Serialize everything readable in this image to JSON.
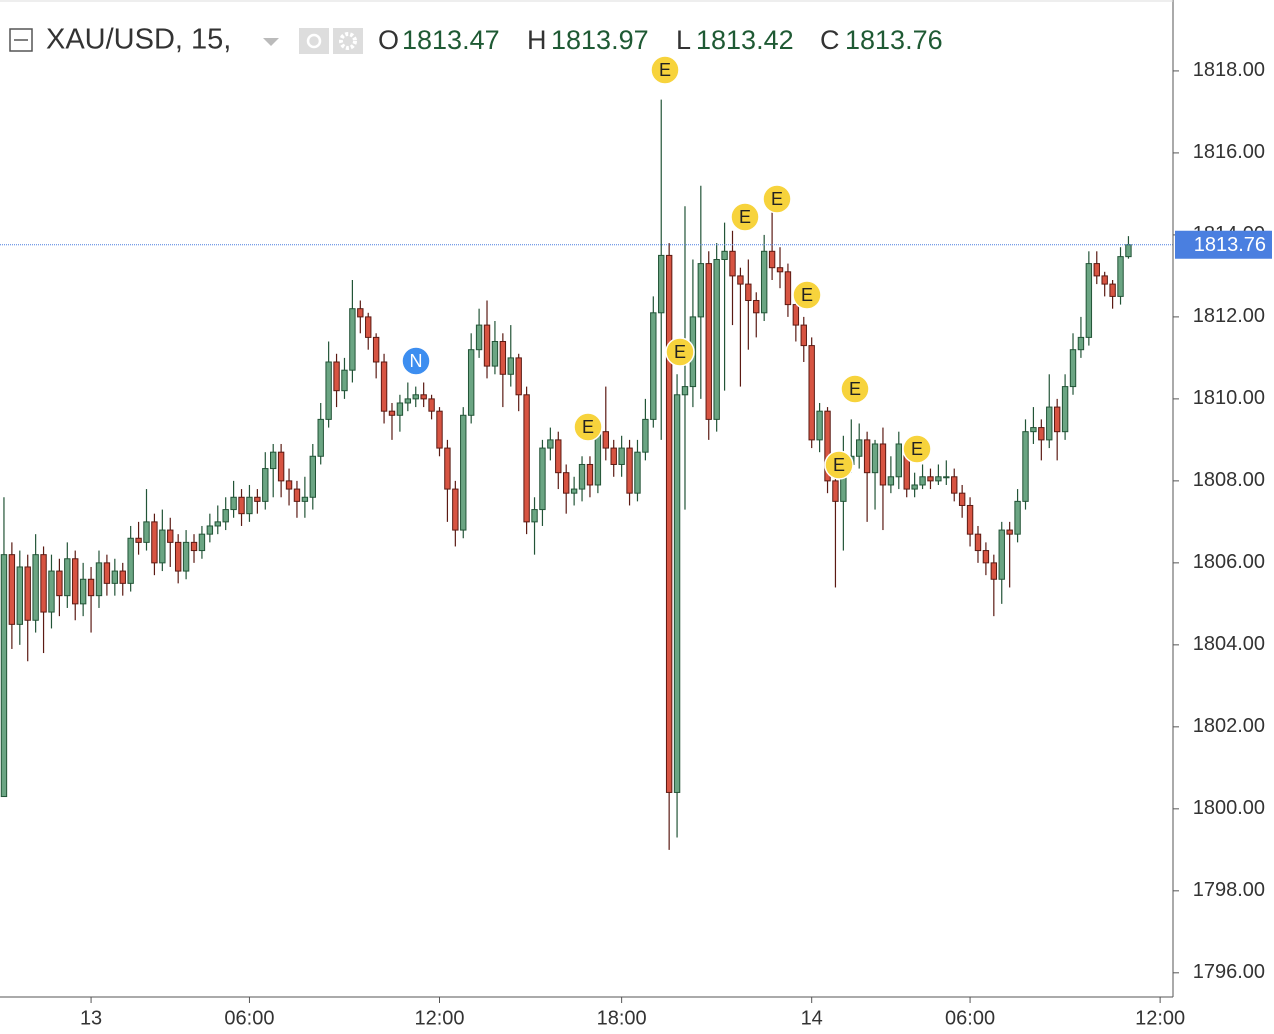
{
  "chart_data": {
    "type": "candlestick",
    "symbol": "XAU/USD, 15,",
    "ohlc_labels": [
      "O",
      "H",
      "L",
      "C"
    ],
    "events": [
      "E",
      "N",
      "E",
      "E",
      "E",
      "E",
      "E",
      "E",
      "E",
      "E"
    ],
    "categories": [
      null,
      null,
      null,
      null,
      null,
      null,
      null,
      null,
      null,
      null,
      null,
      "13",
      null,
      null,
      null,
      null,
      null,
      null,
      null,
      null,
      null,
      null,
      null,
      null,
      null,
      null,
      null,
      null,
      null,
      null,
      null,
      "06:00",
      null,
      null,
      null,
      null,
      null,
      null,
      null,
      null,
      null,
      null,
      null,
      null,
      null,
      null,
      null,
      null,
      null,
      null,
      null,
      null,
      null,
      null,
      null,
      "12:00",
      null,
      null,
      null,
      null,
      null,
      null,
      null,
      null,
      null,
      null,
      null,
      null,
      null,
      null,
      null,
      null,
      null,
      null,
      null,
      null,
      null,
      null,
      "18:00",
      null,
      null,
      null,
      null,
      null,
      null,
      null,
      null,
      null,
      null,
      null,
      null,
      null,
      null,
      null,
      null,
      null,
      null,
      null,
      null,
      null,
      null,
      null,
      "14",
      null,
      null,
      null,
      null,
      null,
      null,
      null,
      null,
      null,
      null,
      null,
      null,
      null,
      null,
      null,
      null,
      null,
      null,
      null,
      "06:00",
      null,
      null,
      null,
      null,
      null,
      null,
      null,
      null,
      null,
      null,
      null,
      null,
      null,
      null,
      null,
      null,
      null,
      null,
      null,
      null,
      null,
      null,
      null,
      "12:00"
    ],
    "open": [
      1800.3,
      1806.2,
      1804.5,
      1805.9,
      1804.6,
      1806.2,
      1804.8,
      1805.8,
      1805.2,
      1806.1,
      1805.0,
      1805.6,
      1805.2,
      1806.0,
      1805.5,
      1805.8,
      1805.5,
      1806.6,
      1806.5,
      1807.0,
      1806.0,
      1806.8,
      1806.5,
      1805.8,
      1806.5,
      1806.3,
      1806.7,
      1806.9,
      1807.0,
      1807.3,
      1807.6,
      1807.2,
      1807.6,
      1807.5,
      1808.3,
      1808.7,
      1808.0,
      1807.8,
      1807.5,
      1807.6,
      1808.6,
      1809.5,
      1810.9,
      1810.2,
      1810.7,
      1812.2,
      1812.0,
      1811.5,
      1810.9,
      1809.7,
      1809.6,
      1809.9,
      1810.0,
      1810.1,
      1810.0,
      1809.7,
      1808.8,
      1807.8,
      1806.8,
      1809.6,
      1811.2,
      1811.8,
      1810.8,
      1811.4,
      1810.6,
      1811.0,
      1810.1,
      1807.0,
      1807.3,
      1808.8,
      1809.0,
      1808.2,
      1807.7,
      1807.8,
      1808.4,
      1807.9,
      1809.2,
      1808.8,
      1808.4,
      1808.8,
      1807.7,
      1808.7,
      1809.5,
      1812.1,
      1813.5,
      1800.4,
      1810.1,
      1810.3,
      1812.0,
      1813.3,
      1809.5,
      1813.4,
      1813.6,
      1813.0,
      1812.8,
      1812.4,
      1812.1,
      1813.6,
      1813.2,
      1813.1,
      1812.3,
      1811.8,
      1811.3,
      1809.0,
      1809.7,
      1808.0,
      1807.5,
      1808.4,
      1808.6,
      1809.0,
      1808.2,
      1808.9,
      1807.9,
      1808.1,
      1808.9,
      1807.8,
      1807.9,
      1808.1,
      1808.0,
      1808.1,
      1808.1,
      1807.7,
      1807.4,
      1806.7,
      1806.3,
      1806.0,
      1805.6,
      1806.8,
      1806.7,
      1807.5,
      1809.2,
      1809.3,
      1809.0,
      1809.8,
      1809.2,
      1810.3,
      1811.2,
      1811.5,
      1813.3,
      1813.0,
      1812.8,
      1812.5,
      1813.47,
      null,
      null,
      null,
      null
    ],
    "high": [
      1807.6,
      1806.5,
      1806.3,
      1806.2,
      1806.7,
      1806.4,
      1806.2,
      1806.1,
      1806.5,
      1806.3,
      1806.0,
      1805.9,
      1806.3,
      1806.2,
      1806.1,
      1806.0,
      1806.9,
      1807.0,
      1807.8,
      1807.2,
      1807.3,
      1807.1,
      1806.7,
      1806.8,
      1806.7,
      1806.9,
      1807.2,
      1807.4,
      1807.6,
      1808.0,
      1807.8,
      1807.9,
      1807.8,
      1808.7,
      1808.9,
      1808.9,
      1808.3,
      1808.0,
      1808.1,
      1808.9,
      1809.9,
      1811.4,
      1811.1,
      1811.0,
      1812.9,
      1812.4,
      1812.1,
      1811.6,
      1811.1,
      1809.9,
      1810.1,
      1810.4,
      1810.3,
      1810.4,
      1810.1,
      1809.8,
      1809.0,
      1808.0,
      1809.8,
      1811.6,
      1812.2,
      1812.4,
      1811.9,
      1811.6,
      1811.8,
      1811.1,
      1810.3,
      1807.6,
      1809.0,
      1809.3,
      1809.2,
      1808.4,
      1808.1,
      1808.6,
      1808.6,
      1809.5,
      1810.3,
      1809.0,
      1809.1,
      1809.0,
      1809.0,
      1810.0,
      1812.5,
      1817.3,
      1813.8,
      1810.6,
      1814.7,
      1813.4,
      1815.2,
      1813.6,
      1813.8,
      1814.3,
      1814.1,
      1813.2,
      1813.4,
      1812.6,
      1814.0,
      1814.6,
      1813.7,
      1813.3,
      1812.6,
      1812.0,
      1811.5,
      1809.9,
      1809.8,
      1808.4,
      1809.1,
      1809.5,
      1809.4,
      1809.2,
      1809.0,
      1809.3,
      1808.6,
      1809.2,
      1809.0,
      1808.2,
      1808.4,
      1808.3,
      1808.4,
      1808.5,
      1808.3,
      1807.9,
      1807.6,
      1806.9,
      1806.5,
      1806.2,
      1807.0,
      1807.0,
      1807.8,
      1809.5,
      1809.8,
      1809.5,
      1810.6,
      1810.0,
      1810.6,
      1811.6,
      1812.0,
      1813.6,
      1813.6,
      1813.1,
      1812.9,
      1813.7,
      1813.97,
      null,
      null,
      null,
      null
    ],
    "low": [
      1800.3,
      1803.9,
      1804.0,
      1803.6,
      1804.3,
      1803.8,
      1804.4,
      1804.7,
      1804.9,
      1804.6,
      1804.7,
      1804.3,
      1804.9,
      1805.2,
      1805.2,
      1805.2,
      1805.3,
      1806.2,
      1806.3,
      1805.7,
      1805.8,
      1805.9,
      1805.5,
      1805.6,
      1806.0,
      1806.1,
      1806.5,
      1806.7,
      1806.8,
      1807.1,
      1806.9,
      1807.0,
      1807.2,
      1807.3,
      1807.6,
      1807.6,
      1807.4,
      1807.1,
      1807.1,
      1807.3,
      1808.4,
      1809.3,
      1809.8,
      1810.0,
      1810.4,
      1811.6,
      1811.2,
      1810.5,
      1809.4,
      1809.0,
      1809.2,
      1809.7,
      1809.8,
      1809.8,
      1809.5,
      1808.6,
      1807.0,
      1806.4,
      1806.6,
      1809.4,
      1811.0,
      1810.5,
      1810.6,
      1809.8,
      1810.3,
      1809.7,
      1806.7,
      1806.2,
      1806.9,
      1808.5,
      1807.8,
      1807.2,
      1807.4,
      1807.5,
      1807.6,
      1807.7,
      1808.5,
      1808.1,
      1808.1,
      1807.4,
      1807.5,
      1808.5,
      1809.3,
      1809.0,
      1799.0,
      1799.3,
      1807.3,
      1809.8,
      1810.0,
      1809.0,
      1809.2,
      1810.2,
      1811.8,
      1810.3,
      1811.2,
      1811.5,
      1811.9,
      1812.9,
      1812.7,
      1812.0,
      1811.4,
      1810.9,
      1808.8,
      1808.7,
      1807.7,
      1805.4,
      1806.3,
      1808.2,
      1808.3,
      1807.0,
      1807.3,
      1806.8,
      1807.7,
      1807.8,
      1807.6,
      1807.6,
      1807.8,
      1807.8,
      1807.9,
      1807.9,
      1807.5,
      1807.1,
      1806.4,
      1806.0,
      1805.7,
      1804.7,
      1805.0,
      1805.4,
      1806.5,
      1807.3,
      1808.9,
      1808.5,
      1808.8,
      1808.5,
      1809.0,
      1810.1,
      1811.0,
      1811.3,
      1812.8,
      1812.5,
      1812.2,
      1812.3,
      1813.42,
      null,
      null,
      null,
      null
    ],
    "close": [
      1806.2,
      1804.5,
      1805.9,
      1804.6,
      1806.2,
      1804.8,
      1805.8,
      1805.2,
      1806.1,
      1805.0,
      1805.6,
      1805.2,
      1806.0,
      1805.5,
      1805.8,
      1805.5,
      1806.6,
      1806.5,
      1807.0,
      1806.0,
      1806.8,
      1806.5,
      1805.8,
      1806.5,
      1806.3,
      1806.7,
      1806.9,
      1807.0,
      1807.3,
      1807.6,
      1807.2,
      1807.6,
      1807.5,
      1808.3,
      1808.7,
      1808.0,
      1807.8,
      1807.5,
      1807.6,
      1808.6,
      1809.5,
      1810.9,
      1810.2,
      1810.7,
      1812.2,
      1812.0,
      1811.5,
      1810.9,
      1809.7,
      1809.6,
      1809.9,
      1810.0,
      1810.1,
      1810.0,
      1809.7,
      1808.8,
      1807.8,
      1806.8,
      1809.6,
      1811.2,
      1811.8,
      1810.8,
      1811.4,
      1810.6,
      1811.0,
      1810.1,
      1807.0,
      1807.3,
      1808.8,
      1809.0,
      1808.2,
      1807.7,
      1807.8,
      1808.4,
      1807.9,
      1809.2,
      1808.8,
      1808.4,
      1808.8,
      1807.7,
      1808.7,
      1809.5,
      1812.1,
      1813.5,
      1800.4,
      1810.1,
      1810.3,
      1812.0,
      1813.3,
      1809.5,
      1813.4,
      1813.6,
      1813.0,
      1812.8,
      1812.4,
      1812.1,
      1813.6,
      1813.2,
      1813.1,
      1812.3,
      1811.8,
      1811.3,
      1809.0,
      1809.7,
      1808.0,
      1807.5,
      1808.4,
      1808.6,
      1809.0,
      1808.2,
      1808.9,
      1807.9,
      1808.1,
      1808.9,
      1807.8,
      1807.9,
      1808.1,
      1808.0,
      1808.1,
      1808.1,
      1807.7,
      1807.4,
      1806.7,
      1806.3,
      1806.0,
      1805.6,
      1806.8,
      1806.7,
      1807.5,
      1809.2,
      1809.3,
      1809.0,
      1809.8,
      1809.2,
      1810.3,
      1811.2,
      1811.5,
      1813.3,
      1813.0,
      1812.8,
      1812.5,
      1813.47,
      1813.76,
      null,
      null,
      null,
      null
    ],
    "ylim": [
      1795.41,
      1819.73
    ],
    "yticks": [
      {
        "value": 1796,
        "label": "1796.00"
      },
      {
        "value": 1798,
        "label": "1798.00"
      },
      {
        "value": 1800,
        "label": "1800.00"
      },
      {
        "value": 1802,
        "label": "1802.00"
      },
      {
        "value": 1804,
        "label": "1804.00"
      },
      {
        "value": 1806,
        "label": "1806.00"
      },
      {
        "value": 1808,
        "label": "1808.00"
      },
      {
        "value": 1810,
        "label": "1810.00"
      },
      {
        "value": 1812,
        "label": "1812.00"
      },
      {
        "value": 1814,
        "label": "1814.00"
      },
      {
        "value": 1816,
        "label": "1816.00"
      },
      {
        "value": 1818,
        "label": "1818.00"
      }
    ],
    "up_color": "#6ba583",
    "up_border": "#225437",
    "down_color": "#d75442",
    "down_border": "#5b1a13",
    "last_price_color": "#4a7fe0",
    "event_color": "#f7d33c",
    "news_color": "#3d8ef0"
  }
}
